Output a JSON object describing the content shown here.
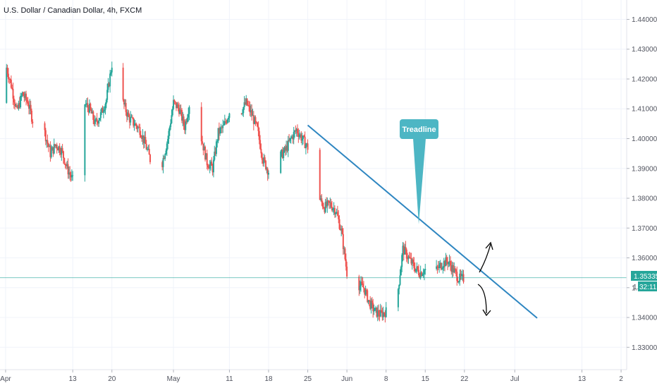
{
  "header": {
    "title": "U.S. Dollar / Canadian Dollar, 4h, FXCM"
  },
  "price_badge": {
    "price": "1.35335",
    "countdown": "32:11",
    "hidden_prefix": "1.",
    "color": "#26a69a"
  },
  "annotation": {
    "label": "Treadline",
    "color": "#4db6c4"
  },
  "colors": {
    "up": "#26a69a",
    "down": "#ef5350",
    "trendline": "#2e86c1",
    "arrow": "#000000",
    "grid": "#f0f3fa"
  },
  "chart_data": {
    "type": "candlestick",
    "title": "U.S. Dollar / Canadian Dollar, 4h, FXCM",
    "xlabel": "",
    "ylabel": "",
    "y_ticks": [
      "1.44000",
      "1.43000",
      "1.42000",
      "1.41000",
      "1.40000",
      "1.39000",
      "1.38000",
      "1.37000",
      "1.36000",
      "1.35000",
      "1.34000",
      "1.33000"
    ],
    "ylim": [
      1.3225,
      1.4465
    ],
    "x_ticks": [
      "Apr",
      "13",
      "20",
      "May",
      "11",
      "18",
      "25",
      "Jun",
      "8",
      "15",
      "22",
      "Jul",
      "13",
      "2"
    ],
    "x_tick_days": [
      0,
      12,
      19,
      30,
      40,
      47,
      54,
      61,
      68,
      75,
      82,
      91,
      103,
      110
    ],
    "xlim": [
      -1,
      111
    ],
    "grid": true,
    "current_price": 1.35335,
    "price_path_days": [
      -1,
      0,
      1,
      2,
      3,
      4,
      5,
      6,
      7,
      8,
      9,
      10,
      11,
      12,
      13,
      14,
      15,
      16,
      17,
      18,
      19,
      20,
      21,
      22,
      23,
      24,
      25,
      26,
      27,
      28,
      29,
      30,
      31,
      32,
      33,
      34,
      35,
      36,
      37,
      38,
      39,
      40,
      41,
      42,
      43,
      44,
      45,
      46,
      47,
      48,
      49,
      50,
      51,
      52,
      53,
      54,
      55,
      56,
      57,
      58,
      59,
      60,
      61,
      62,
      63,
      64,
      65,
      66,
      67,
      68,
      69,
      70,
      71,
      72,
      73,
      74,
      75,
      76,
      77,
      78,
      79,
      80,
      81,
      82,
      83
    ],
    "price_path_closes": [
      1.412,
      1.425,
      1.418,
      1.409,
      1.415,
      1.412,
      1.405,
      1.398,
      1.402,
      1.395,
      1.398,
      1.396,
      1.39,
      1.386,
      1.389,
      1.412,
      1.41,
      1.405,
      1.408,
      1.413,
      1.425,
      1.418,
      1.412,
      1.407,
      1.405,
      1.403,
      1.398,
      1.392,
      1.386,
      1.392,
      1.4,
      1.412,
      1.41,
      1.404,
      1.413,
      1.408,
      1.4,
      1.392,
      1.39,
      1.402,
      1.404,
      1.409,
      1.411,
      1.409,
      1.412,
      1.408,
      1.403,
      1.393,
      1.389,
      1.392,
      1.394,
      1.396,
      1.4,
      1.403,
      1.4,
      1.397,
      1.392,
      1.38,
      1.377,
      1.378,
      1.376,
      1.369,
      1.355,
      1.352,
      1.351,
      1.35,
      1.345,
      1.342,
      1.341,
      1.342,
      1.345,
      1.347,
      1.363,
      1.36,
      1.357,
      1.355,
      1.356,
      1.358,
      1.356,
      1.358,
      1.359,
      1.356,
      1.353,
      1.353,
      1.354
    ],
    "trendline": {
      "from": {
        "day": 54,
        "price": 1.4045
      },
      "to": {
        "day": 95,
        "price": 1.3398
      }
    },
    "current_price_line": 1.35335
  }
}
